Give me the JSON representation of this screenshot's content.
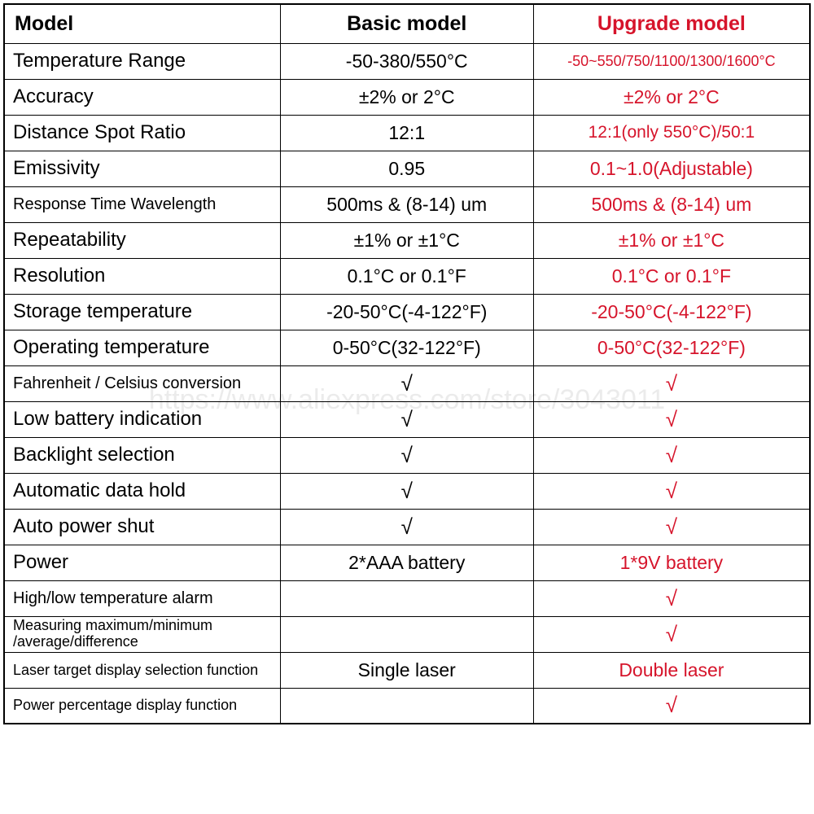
{
  "header": {
    "label": "Model",
    "basic": "Basic model",
    "upgrade": "Upgrade model"
  },
  "rows": [
    {
      "label": "Temperature Range",
      "basic": "-50-380/550°C",
      "upgrade": "-50~550/750/1100/1300/1600°C",
      "labelClass": "label-lg",
      "basicClass": "val-lg",
      "upgradeClass": "val-sm"
    },
    {
      "label": "Accuracy",
      "basic": "±2% or 2°C",
      "upgrade": "±2% or  2°C",
      "labelClass": "label-lg",
      "basicClass": "val-lg",
      "upgradeClass": "val-lg"
    },
    {
      "label": "Distance Spot Ratio",
      "basic": "12:1",
      "upgrade": "12:1(only 550°C)/50:1",
      "labelClass": "label-lg",
      "basicClass": "val-lg",
      "upgradeClass": "val-md"
    },
    {
      "label": "Emissivity",
      "basic": "0.95",
      "upgrade": "0.1~1.0(Adjustable)",
      "labelClass": "label-lg",
      "basicClass": "val-lg",
      "upgradeClass": "val-lg"
    },
    {
      "label": "Response Time Wavelength",
      "basic": "500ms & (8-14) um",
      "upgrade": "500ms & (8-14) um",
      "labelClass": "label-md",
      "basicClass": "val-lg",
      "upgradeClass": "val-lg"
    },
    {
      "label": "Repeatability",
      "basic": "±1% or ±1°C",
      "upgrade": "±1% or ±1°C",
      "labelClass": "label-lg",
      "basicClass": "val-lg",
      "upgradeClass": "val-lg"
    },
    {
      "label": "Resolution",
      "basic": "0.1°C or 0.1°F",
      "upgrade": "0.1°C or 0.1°F",
      "labelClass": "label-lg",
      "basicClass": "val-lg",
      "upgradeClass": "val-lg"
    },
    {
      "label": "Storage temperature",
      "basic": "-20-50°C(-4-122°F)",
      "upgrade": "-20-50°C(-4-122°F)",
      "labelClass": "label-lg",
      "basicClass": "val-lg",
      "upgradeClass": "val-lg"
    },
    {
      "label": "Operating temperature",
      "basic": "0-50°C(32-122°F)",
      "upgrade": "0-50°C(32-122°F)",
      "labelClass": "label-lg",
      "basicClass": "val-lg",
      "upgradeClass": "val-lg"
    },
    {
      "label": "Fahrenheit / Celsius conversion",
      "basic": "√",
      "upgrade": "√",
      "labelClass": "label-md",
      "basicClass": "check",
      "upgradeClass": "check"
    },
    {
      "label": "Low battery indication",
      "basic": "√",
      "upgrade": "√",
      "labelClass": "label-lg",
      "basicClass": "check",
      "upgradeClass": "check"
    },
    {
      "label": "Backlight selection",
      "basic": "√",
      "upgrade": "√",
      "labelClass": "label-lg",
      "basicClass": "check",
      "upgradeClass": "check"
    },
    {
      "label": "Automatic data hold",
      "basic": "√",
      "upgrade": "√",
      "labelClass": "label-lg",
      "basicClass": "check",
      "upgradeClass": "check"
    },
    {
      "label": "Auto power shut",
      "basic": "√",
      "upgrade": "√",
      "labelClass": "label-lg",
      "basicClass": "check",
      "upgradeClass": "check"
    },
    {
      "label": "Power",
      "basic": "2*AAA battery",
      "upgrade": "1*9V battery",
      "labelClass": "label-lg",
      "basicClass": "val-lg",
      "upgradeClass": "val-lg"
    },
    {
      "label": "High/low temperature alarm",
      "basic": "",
      "upgrade": "√",
      "labelClass": "label-md",
      "basicClass": "check",
      "upgradeClass": "check"
    },
    {
      "label": "Measuring maximum/minimum\n/average/difference",
      "basic": "",
      "upgrade": "√",
      "labelClass": "label-sm multiline",
      "basicClass": "check",
      "upgradeClass": "check"
    },
    {
      "label": "Laser target display selection function",
      "basic": "Single laser",
      "upgrade": "Double laser",
      "labelClass": "label-sm",
      "basicClass": "val-lg",
      "upgradeClass": "val-lg"
    },
    {
      "label": "Power percentage display function",
      "basic": "",
      "upgrade": "√",
      "labelClass": "label-sm",
      "basicClass": "check",
      "upgradeClass": "check"
    }
  ],
  "watermark": "https://www.aliexpress.com/store/3043011",
  "colors": {
    "border": "#000000",
    "text": "#000000",
    "upgrade": "#d6142b",
    "background": "#ffffff"
  }
}
